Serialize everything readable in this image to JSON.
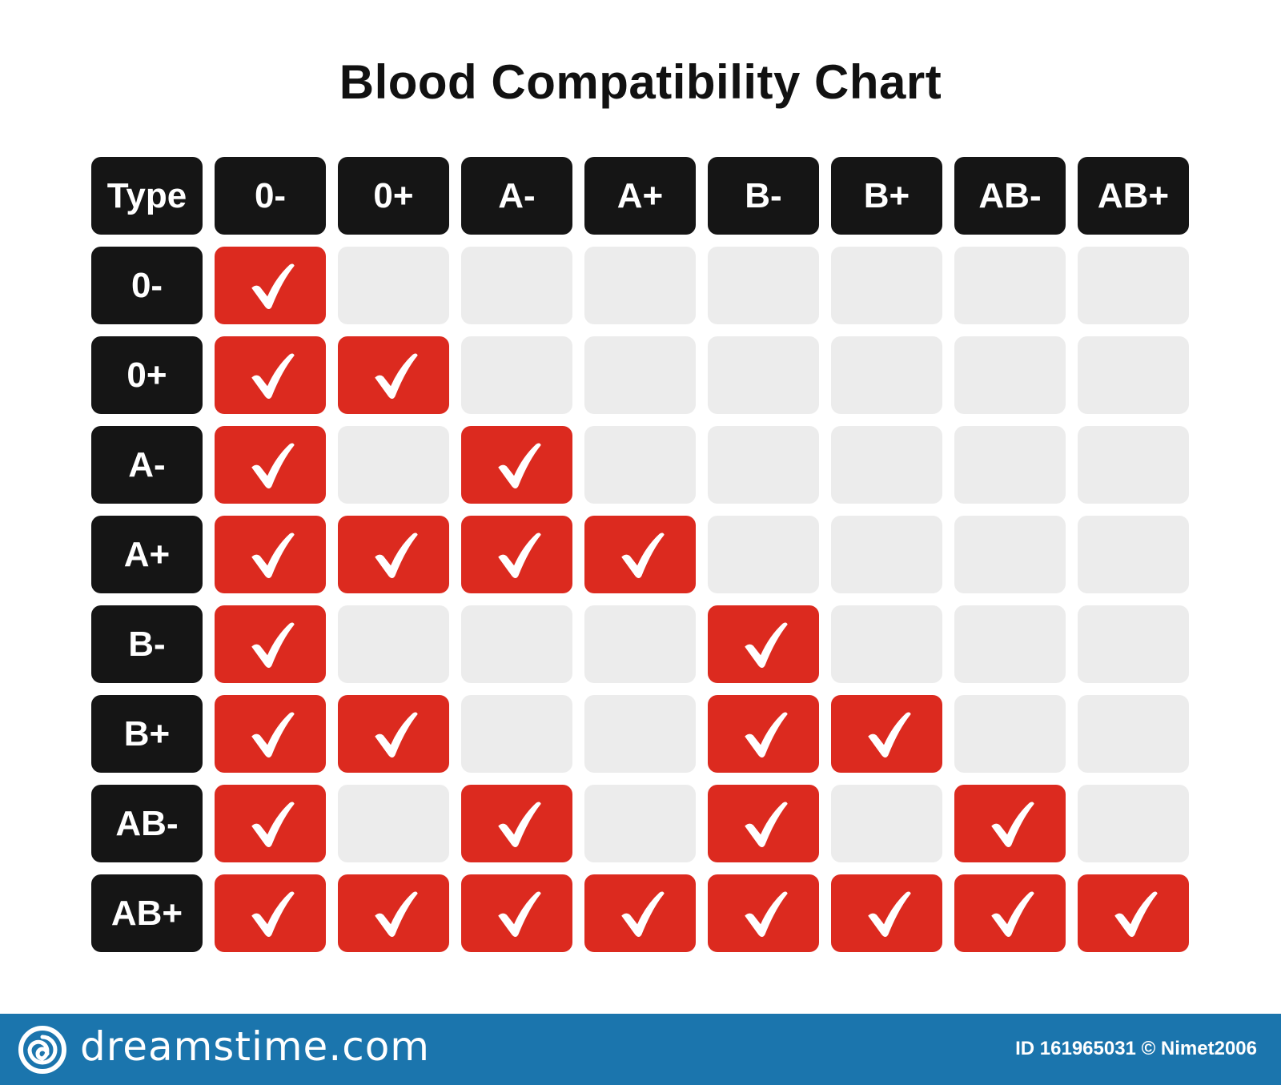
{
  "chart_data": {
    "type": "table",
    "title": "Blood Compatibility Chart",
    "corner_label": "Type",
    "columns": [
      "0-",
      "0+",
      "A-",
      "A+",
      "B-",
      "B+",
      "AB-",
      "AB+"
    ],
    "rows": [
      {
        "label": "0-",
        "values": [
          1,
          0,
          0,
          0,
          0,
          0,
          0,
          0
        ]
      },
      {
        "label": "0+",
        "values": [
          1,
          1,
          0,
          0,
          0,
          0,
          0,
          0
        ]
      },
      {
        "label": "A-",
        "values": [
          1,
          0,
          1,
          0,
          0,
          0,
          0,
          0
        ]
      },
      {
        "label": "A+",
        "values": [
          1,
          1,
          1,
          1,
          0,
          0,
          0,
          0
        ]
      },
      {
        "label": "B-",
        "values": [
          1,
          0,
          0,
          0,
          1,
          0,
          0,
          0
        ]
      },
      {
        "label": "B+",
        "values": [
          1,
          1,
          0,
          0,
          1,
          1,
          0,
          0
        ]
      },
      {
        "label": "AB-",
        "values": [
          1,
          0,
          1,
          0,
          1,
          0,
          1,
          0
        ]
      },
      {
        "label": "AB+",
        "values": [
          1,
          1,
          1,
          1,
          1,
          1,
          1,
          1
        ]
      }
    ],
    "colors": {
      "header": "#151515",
      "compatible": "#dc2a1f",
      "incompatible": "#ececec",
      "check": "#ffffff"
    },
    "mark_icon": "checkmark-icon"
  },
  "footer": {
    "brand": "dreamstime.com",
    "meta": "ID 161965031 © Nimet2006",
    "logo_icon": "dreamstime-swirl-icon",
    "background": "#1b75ad"
  }
}
